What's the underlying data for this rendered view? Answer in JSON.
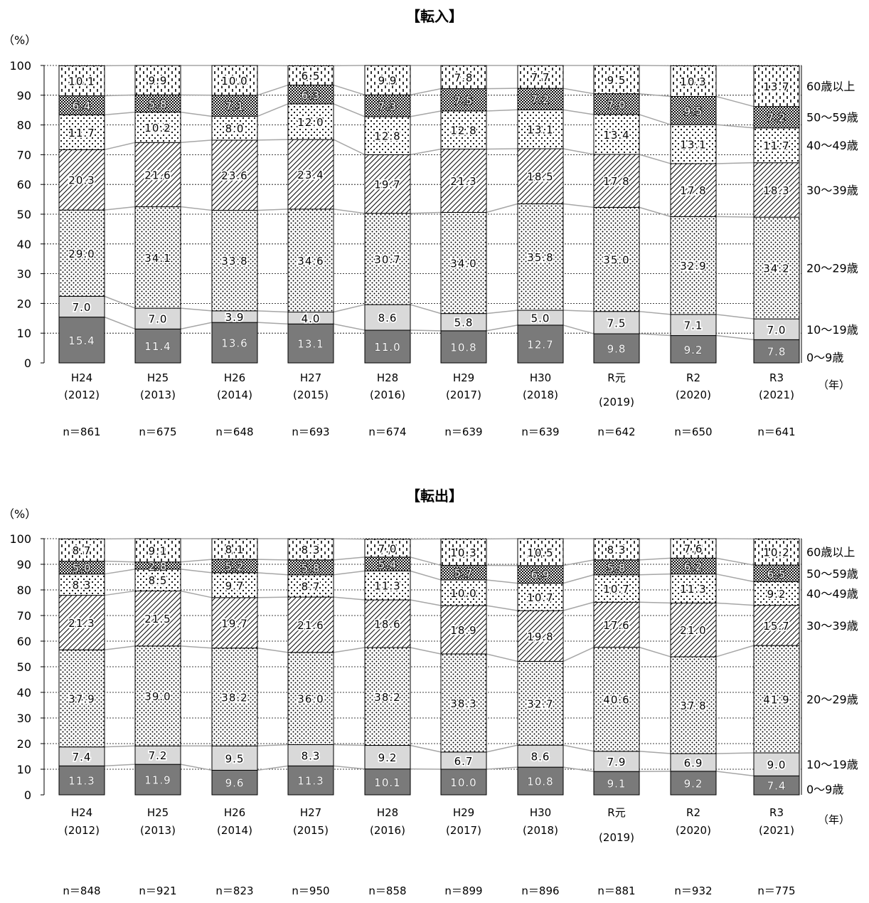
{
  "chart_data": [
    {
      "type": "bar",
      "stacked": true,
      "title": "【転入】",
      "ylabel": "（%）",
      "xunit": "（年）",
      "ylim": [
        0,
        100
      ],
      "yticks": [
        "0",
        "10",
        "20",
        "30",
        "40",
        "50",
        "60",
        "70",
        "80",
        "90",
        "100"
      ],
      "grid": true,
      "categories": [
        {
          "top": "H24",
          "bottom": "(2012)"
        },
        {
          "top": "H25",
          "bottom": "(2013)"
        },
        {
          "top": "H26",
          "bottom": "(2014)"
        },
        {
          "top": "H27",
          "bottom": "(2015)"
        },
        {
          "top": "H28",
          "bottom": "(2016)"
        },
        {
          "top": "H29",
          "bottom": "(2017)"
        },
        {
          "top": "H30",
          "bottom": "(2018)"
        },
        {
          "top": "R元",
          "bottom": "(2019)"
        },
        {
          "top": "R2",
          "bottom": "(2020)"
        },
        {
          "top": "R3",
          "bottom": "(2021)"
        }
      ],
      "n_labels": [
        "n＝861",
        "n＝675",
        "n＝648",
        "n＝693",
        "n＝674",
        "n＝639",
        "n＝639",
        "n＝642",
        "n＝650",
        "n＝641"
      ],
      "series": [
        {
          "name": "0～9歳",
          "values": [
            15.4,
            11.4,
            13.6,
            13.1,
            11.0,
            10.8,
            12.7,
            9.8,
            9.2,
            7.8
          ],
          "labels": [
            "15.4",
            "11.4",
            "13.6",
            "13.1",
            "11.0",
            "10.8",
            "12.7",
            "9.8",
            "9.2",
            "7.8"
          ],
          "color": "#7a7a7a",
          "pattern": "solid-dark"
        },
        {
          "name": "10～19歳",
          "values": [
            7.0,
            7.0,
            3.9,
            4.0,
            8.6,
            5.8,
            5.0,
            7.5,
            7.1,
            7.0
          ],
          "labels": [
            "7.0",
            "7.0",
            "3.9",
            "4.0",
            "8.6",
            "5.8",
            "5.0",
            "7.5",
            "7.1",
            "7.0"
          ],
          "color": "#d9d9d9",
          "pattern": "solid-light"
        },
        {
          "name": "20～29歳",
          "values": [
            29.0,
            34.1,
            33.8,
            34.6,
            30.7,
            34.0,
            35.8,
            35.0,
            32.9,
            34.2
          ],
          "labels": [
            "29.0",
            "34.1",
            "33.8",
            "34.6",
            "30.7",
            "34.0",
            "35.8",
            "35.0",
            "32.9",
            "34.2"
          ],
          "color": "#ffffff",
          "pattern": "dots"
        },
        {
          "name": "30～39歳",
          "values": [
            20.3,
            21.6,
            23.6,
            23.4,
            19.7,
            21.3,
            18.5,
            17.8,
            17.8,
            18.3
          ],
          "labels": [
            "20.3",
            "21.6",
            "23.6",
            "23.4",
            "19.7",
            "21.3",
            "18.5",
            "17.8",
            "17.8",
            "18.3"
          ],
          "color": "#ffffff",
          "pattern": "hatch"
        },
        {
          "name": "40～49歳",
          "values": [
            11.7,
            10.2,
            8.0,
            12.0,
            12.8,
            12.8,
            13.1,
            13.4,
            13.1,
            11.7
          ],
          "labels": [
            "11.7",
            "10.2",
            "8.0",
            "12.0",
            "12.8",
            "12.8",
            "13.1",
            "13.4",
            "13.1",
            "11.7"
          ],
          "color": "#ffffff",
          "pattern": "sparse-dots"
        },
        {
          "name": "50～59歳",
          "values": [
            6.4,
            5.8,
            7.1,
            6.3,
            7.3,
            7.5,
            7.2,
            7.0,
            9.5,
            7.2
          ],
          "labels": [
            "6.4",
            "5.8",
            "7.1",
            "6.3",
            "7.3",
            "7.5",
            "7.2",
            "7.0",
            "9.5",
            "7.2"
          ],
          "color": "#8c8c8c",
          "pattern": "checker"
        },
        {
          "name": "60歳以上",
          "values": [
            10.1,
            9.9,
            10.0,
            6.5,
            9.9,
            7.8,
            7.7,
            9.5,
            10.3,
            13.7
          ],
          "labels": [
            "10.1",
            "9.9",
            "10.0",
            "6.5",
            "9.9",
            "7.8",
            "7.7",
            "9.5",
            "10.3",
            "13.7"
          ],
          "color": "#ffffff",
          "pattern": "dashes"
        }
      ]
    },
    {
      "type": "bar",
      "stacked": true,
      "title": "【転出】",
      "ylabel": "（%）",
      "xunit": "（年）",
      "ylim": [
        0,
        100
      ],
      "yticks": [
        "0",
        "10",
        "20",
        "30",
        "40",
        "50",
        "60",
        "70",
        "80",
        "90",
        "100"
      ],
      "grid": true,
      "categories": [
        {
          "top": "H24",
          "bottom": "(2012)"
        },
        {
          "top": "H25",
          "bottom": "(2013)"
        },
        {
          "top": "H26",
          "bottom": "(2014)"
        },
        {
          "top": "H27",
          "bottom": "(2015)"
        },
        {
          "top": "H28",
          "bottom": "(2016)"
        },
        {
          "top": "H29",
          "bottom": "(2017)"
        },
        {
          "top": "H30",
          "bottom": "(2018)"
        },
        {
          "top": "R元",
          "bottom": "(2019)"
        },
        {
          "top": "R2",
          "bottom": "(2020)"
        },
        {
          "top": "R3",
          "bottom": "(2021)"
        }
      ],
      "n_labels": [
        "n＝848",
        "n＝921",
        "n＝823",
        "n＝950",
        "n＝858",
        "n＝899",
        "n＝896",
        "n＝881",
        "n＝932",
        "n＝775"
      ],
      "series": [
        {
          "name": "0～9歳",
          "values": [
            11.3,
            11.9,
            9.6,
            11.3,
            10.1,
            10.0,
            10.8,
            9.1,
            9.2,
            7.4
          ],
          "labels": [
            "11.3",
            "11.9",
            "9.6",
            "11.3",
            "10.1",
            "10.0",
            "10.8",
            "9.1",
            "9.2",
            "7.4"
          ],
          "color": "#7a7a7a",
          "pattern": "solid-dark"
        },
        {
          "name": "10～19歳",
          "values": [
            7.4,
            7.2,
            9.5,
            8.3,
            9.2,
            6.7,
            8.6,
            7.9,
            6.9,
            9.0
          ],
          "labels": [
            "7.4",
            "7.2",
            "9.5",
            "8.3",
            "9.2",
            "6.7",
            "8.6",
            "7.9",
            "6.9",
            "9.0"
          ],
          "color": "#d9d9d9",
          "pattern": "solid-light"
        },
        {
          "name": "20～29歳",
          "values": [
            37.9,
            39.0,
            38.2,
            36.0,
            38.2,
            38.3,
            32.7,
            40.6,
            37.8,
            41.9
          ],
          "labels": [
            "37.9",
            "39.0",
            "38.2",
            "36.0",
            "38.2",
            "38.3",
            "32.7",
            "40.6",
            "37.8",
            "41.9"
          ],
          "color": "#ffffff",
          "pattern": "dots"
        },
        {
          "name": "30～39歳",
          "values": [
            21.3,
            21.5,
            19.7,
            21.6,
            18.6,
            18.9,
            19.8,
            17.6,
            21.0,
            15.7
          ],
          "labels": [
            "21.3",
            "21.5",
            "19.7",
            "21.6",
            "18.6",
            "18.9",
            "19.8",
            "17.6",
            "21.0",
            "15.7"
          ],
          "color": "#ffffff",
          "pattern": "hatch"
        },
        {
          "name": "40～49歳",
          "values": [
            8.3,
            8.5,
            9.7,
            8.7,
            11.3,
            10.0,
            10.7,
            10.7,
            11.3,
            9.2
          ],
          "labels": [
            "8.3",
            "8.5",
            "9.7",
            "8.7",
            "11.3",
            "10.0",
            "10.7",
            "10.7",
            "11.3",
            "9.2"
          ],
          "color": "#ffffff",
          "pattern": "sparse-dots"
        },
        {
          "name": "50～59歳",
          "values": [
            5.0,
            2.8,
            5.2,
            5.8,
            5.4,
            5.7,
            6.9,
            5.8,
            6.2,
            6.5
          ],
          "labels": [
            "5.0",
            "2.8",
            "5.2",
            "5.8",
            "5.4",
            "5.7",
            "6.9",
            "5.8",
            "6.2",
            "6.5"
          ],
          "color": "#8c8c8c",
          "pattern": "checker"
        },
        {
          "name": "60歳以上",
          "values": [
            8.7,
            9.1,
            8.1,
            8.3,
            7.0,
            10.3,
            10.5,
            8.3,
            7.6,
            10.2
          ],
          "labels": [
            "8.7",
            "9.1",
            "8.1",
            "8.3",
            "7.0",
            "10.3",
            "10.5",
            "8.3",
            "7.6",
            "10.2"
          ],
          "color": "#ffffff",
          "pattern": "dashes"
        }
      ]
    }
  ]
}
